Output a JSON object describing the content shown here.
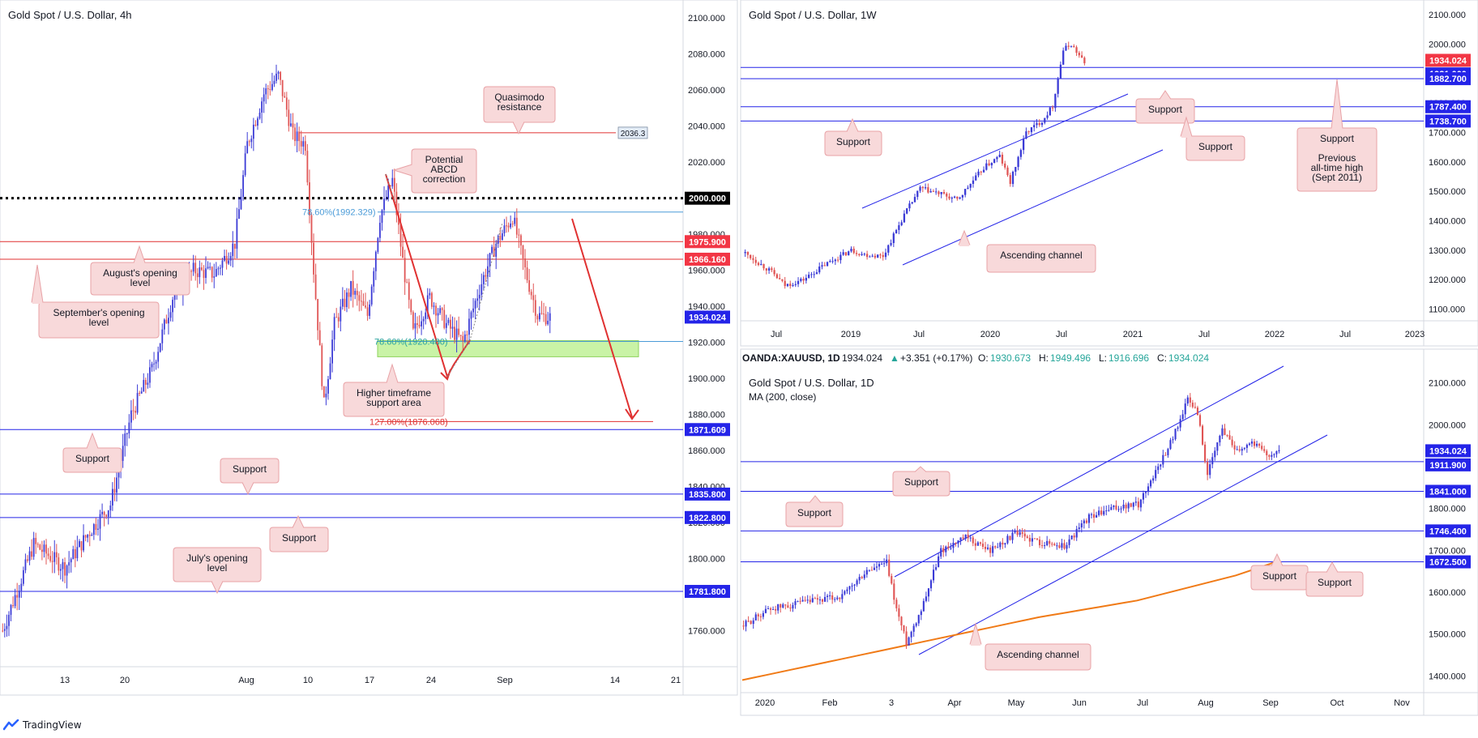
{
  "branding": {
    "name": "TradingView",
    "logo_icon": "tradingview-logo-icon"
  },
  "colors": {
    "up": "#3b3bd6",
    "down": "#e05555",
    "hline": "#2424e8",
    "resistance": "#e03131",
    "callout_bg": "#f8d9da",
    "callout_border": "#e8a2a6",
    "green_zone": "#c9f3a6",
    "ma": "#f07a16",
    "fib": "#4a9bd8",
    "price_tag": "#f23645",
    "level_tag": "#2424e8"
  },
  "chart_data": [
    {
      "id": "h4",
      "type": "candlestick",
      "title": "Gold Spot / U.S. Dollar, 4h",
      "ylim": [
        1740,
        2110
      ],
      "y_ticks": [
        1760,
        1780,
        1800,
        1820,
        1840,
        1860,
        1880,
        1900,
        1920,
        1940,
        1960,
        1980,
        2000,
        2020,
        2040,
        2060,
        2080,
        2100
      ],
      "x_ticks": [
        "13",
        "20",
        "Aug",
        "10",
        "17",
        "24",
        "Sep",
        "14",
        "21"
      ],
      "current_price": "1934.024",
      "levels": [
        {
          "value": 2000.0,
          "label": "2000.000",
          "style": "dotted-black"
        },
        {
          "value": 1975.9,
          "label": "1975.900",
          "style": "red"
        },
        {
          "value": 1966.16,
          "label": "1966.160",
          "style": "red"
        },
        {
          "value": 1871.609,
          "label": "1871.609",
          "style": "blue"
        },
        {
          "value": 1835.8,
          "label": "1835.800",
          "style": "blue"
        },
        {
          "value": 1822.8,
          "label": "1822.800",
          "style": "blue"
        },
        {
          "value": 1781.8,
          "label": "1781.800",
          "style": "blue"
        }
      ],
      "quasimodo_level": {
        "value": 2036.3,
        "label": "2036.3"
      },
      "fib_labels": [
        "78.60%(1992.329)",
        "78.60%(1920.480)",
        "127.00%(1876.068)"
      ],
      "annotations": [
        "Quasimodo resistance",
        "Potential ABCD correction",
        "August's opening level",
        "September's opening level",
        "Higher timeframe support area",
        "Support",
        "Support",
        "Support",
        "July's opening level"
      ],
      "support_zone": [
        1912,
        1921
      ],
      "path_points": [
        {
          "i": 0,
          "v": 1760
        },
        {
          "i": 15,
          "v": 1808
        },
        {
          "i": 30,
          "v": 1795
        },
        {
          "i": 42,
          "v": 1815
        },
        {
          "i": 52,
          "v": 1830
        },
        {
          "i": 62,
          "v": 1880
        },
        {
          "i": 72,
          "v": 1905
        },
        {
          "i": 82,
          "v": 1945
        },
        {
          "i": 92,
          "v": 1960
        },
        {
          "i": 102,
          "v": 1958
        },
        {
          "i": 112,
          "v": 1975
        },
        {
          "i": 118,
          "v": 2030
        },
        {
          "i": 126,
          "v": 2058
        },
        {
          "i": 133,
          "v": 2068
        },
        {
          "i": 140,
          "v": 2035
        },
        {
          "i": 146,
          "v": 2030
        },
        {
          "i": 150,
          "v": 1960
        },
        {
          "i": 155,
          "v": 1885
        },
        {
          "i": 160,
          "v": 1930
        },
        {
          "i": 168,
          "v": 1950
        },
        {
          "i": 176,
          "v": 1935
        },
        {
          "i": 182,
          "v": 1990
        },
        {
          "i": 188,
          "v": 2010
        },
        {
          "i": 193,
          "v": 1965
        },
        {
          "i": 198,
          "v": 1925
        },
        {
          "i": 206,
          "v": 1945
        },
        {
          "i": 214,
          "v": 1930
        },
        {
          "i": 222,
          "v": 1920
        },
        {
          "i": 230,
          "v": 1950
        },
        {
          "i": 238,
          "v": 1975
        },
        {
          "i": 246,
          "v": 1990
        },
        {
          "i": 252,
          "v": 1960
        },
        {
          "i": 258,
          "v": 1935
        },
        {
          "i": 264,
          "v": 1934
        }
      ]
    },
    {
      "id": "w1",
      "type": "candlestick",
      "title": "Gold Spot / U.S. Dollar, 1W",
      "ylim": [
        1060,
        2150
      ],
      "y_ticks": [
        1100,
        1200,
        1300,
        1400,
        1500,
        1600,
        1700,
        1800,
        1900,
        2000,
        2100
      ],
      "x_ticks": [
        "Jul",
        "2019",
        "Jul",
        "2020",
        "Jul",
        "2021",
        "Jul",
        "2022",
        "Jul",
        "2023"
      ],
      "current_price": "1934.024",
      "levels": [
        {
          "value": 1921.0,
          "label": "1921.000"
        },
        {
          "value": 1882.7,
          "label": "1882.700"
        },
        {
          "value": 1787.4,
          "label": "1787.400"
        },
        {
          "value": 1738.7,
          "label": "1738.700"
        }
      ],
      "annotations": [
        "Support",
        "Support",
        "Support",
        "Support",
        "Previous all-time high (Sept 2011)",
        "Ascending channel"
      ],
      "path_points": [
        {
          "i": 0,
          "v": 1290
        },
        {
          "i": 10,
          "v": 1225
        },
        {
          "i": 15,
          "v": 1180
        },
        {
          "i": 22,
          "v": 1200
        },
        {
          "i": 30,
          "v": 1250
        },
        {
          "i": 40,
          "v": 1300
        },
        {
          "i": 45,
          "v": 1285
        },
        {
          "i": 52,
          "v": 1280
        },
        {
          "i": 60,
          "v": 1420
        },
        {
          "i": 66,
          "v": 1510
        },
        {
          "i": 74,
          "v": 1490
        },
        {
          "i": 80,
          "v": 1470
        },
        {
          "i": 90,
          "v": 1580
        },
        {
          "i": 96,
          "v": 1620
        },
        {
          "i": 100,
          "v": 1530
        },
        {
          "i": 106,
          "v": 1700
        },
        {
          "i": 112,
          "v": 1740
        },
        {
          "i": 116,
          "v": 1790
        },
        {
          "i": 120,
          "v": 1980
        },
        {
          "i": 123,
          "v": 2000
        },
        {
          "i": 126,
          "v": 1960
        },
        {
          "i": 128,
          "v": 1934
        }
      ]
    },
    {
      "id": "d1",
      "type": "candlestick",
      "title": "Gold Spot / U.S. Dollar, 1D",
      "ticker": "OANDA:XAUUSD, 1D",
      "ohlc": {
        "last": "1934.024",
        "change": "+3.351 (+0.17%)",
        "o": "1930.673",
        "h": "1949.496",
        "l": "1916.696",
        "c": "1934.024"
      },
      "ma_label": "MA (200, close)",
      "ylim": [
        1360,
        2140
      ],
      "y_ticks": [
        1400,
        1500,
        1600,
        1700,
        1800,
        1900,
        2000,
        2100
      ],
      "x_ticks": [
        "2020",
        "Feb",
        "3",
        "Apr",
        "May",
        "Jun",
        "Jul",
        "Aug",
        "Sep",
        "Oct",
        "Nov"
      ],
      "current_price": "1934.024",
      "levels": [
        {
          "value": 1911.9,
          "label": "1911.900"
        },
        {
          "value": 1841.0,
          "label": "1841.000"
        },
        {
          "value": 1746.4,
          "label": "1746.400"
        },
        {
          "value": 1672.5,
          "label": "1672.500"
        }
      ],
      "annotations": [
        "Support",
        "Support",
        "Support",
        "Support",
        "Ascending channel"
      ],
      "ma_points": [
        {
          "i": 0,
          "v": 1390
        },
        {
          "i": 40,
          "v": 1440
        },
        {
          "i": 80,
          "v": 1490
        },
        {
          "i": 120,
          "v": 1540
        },
        {
          "i": 160,
          "v": 1580
        },
        {
          "i": 200,
          "v": 1640
        },
        {
          "i": 230,
          "v": 1700
        }
      ],
      "path_points": [
        {
          "i": 0,
          "v": 1520
        },
        {
          "i": 10,
          "v": 1560
        },
        {
          "i": 25,
          "v": 1575
        },
        {
          "i": 40,
          "v": 1590
        },
        {
          "i": 50,
          "v": 1650
        },
        {
          "i": 58,
          "v": 1670
        },
        {
          "i": 62,
          "v": 1560
        },
        {
          "i": 66,
          "v": 1480
        },
        {
          "i": 72,
          "v": 1560
        },
        {
          "i": 80,
          "v": 1700
        },
        {
          "i": 90,
          "v": 1730
        },
        {
          "i": 100,
          "v": 1700
        },
        {
          "i": 110,
          "v": 1740
        },
        {
          "i": 120,
          "v": 1720
        },
        {
          "i": 130,
          "v": 1710
        },
        {
          "i": 140,
          "v": 1780
        },
        {
          "i": 150,
          "v": 1800
        },
        {
          "i": 160,
          "v": 1810
        },
        {
          "i": 168,
          "v": 1900
        },
        {
          "i": 174,
          "v": 1970
        },
        {
          "i": 180,
          "v": 2060
        },
        {
          "i": 184,
          "v": 2030
        },
        {
          "i": 188,
          "v": 1880
        },
        {
          "i": 194,
          "v": 1990
        },
        {
          "i": 200,
          "v": 1940
        },
        {
          "i": 206,
          "v": 1960
        },
        {
          "i": 212,
          "v": 1930
        },
        {
          "i": 217,
          "v": 1934
        }
      ]
    }
  ]
}
